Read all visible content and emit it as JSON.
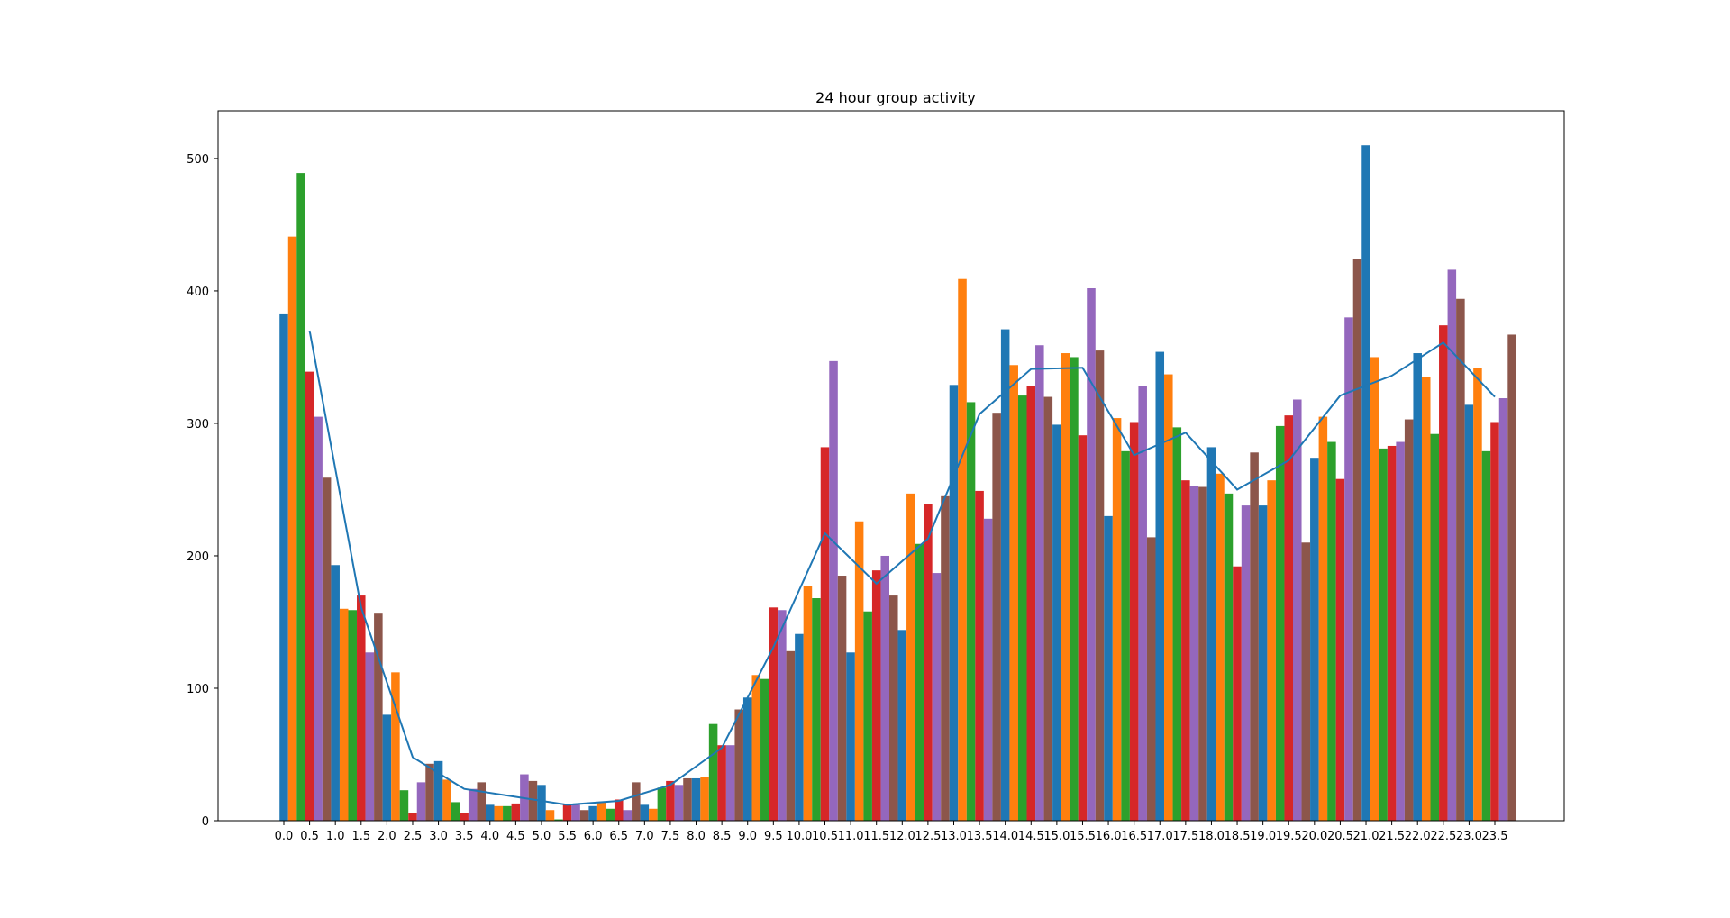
{
  "chart_data": {
    "type": "bar",
    "title": "24 hour group activity",
    "xlabel": "",
    "ylabel": "",
    "ylim": [
      0,
      536
    ],
    "y_ticks": [
      "0",
      "100",
      "200",
      "300",
      "400",
      "500"
    ],
    "x_ticks": [
      "0.0",
      "0.5",
      "1.0",
      "1.5",
      "2.0",
      "2.5",
      "3.0",
      "3.5",
      "4.0",
      "4.5",
      "5.0",
      "5.5",
      "6.0",
      "6.5",
      "7.0",
      "7.5",
      "8.0",
      "8.5",
      "9.0",
      "9.5",
      "10.0",
      "10.5",
      "11.0",
      "11.5",
      "12.0",
      "12.5",
      "13.0",
      "13.5",
      "14.0",
      "14.5",
      "15.0",
      "15.5",
      "16.0",
      "16.5",
      "17.0",
      "17.5",
      "18.0",
      "18.5",
      "19.0",
      "19.5",
      "20.0",
      "20.5",
      "21.0",
      "21.5",
      "22.0",
      "22.5",
      "23.0",
      "23.5"
    ],
    "grid": false,
    "legend": "none",
    "bar_colors": [
      "#1f77b4",
      "#ff7f0e",
      "#2ca02c",
      "#d62728",
      "#9467bd",
      "#8c564b"
    ],
    "line_color": "#1f77b4",
    "bars": [
      383,
      441,
      489,
      339,
      305,
      259,
      193,
      160,
      159,
      170,
      127,
      157,
      80,
      112,
      23,
      6,
      29,
      43,
      45,
      31,
      14,
      6,
      24,
      29,
      12,
      11,
      11,
      13,
      35,
      30,
      27,
      8,
      1,
      12,
      12,
      8,
      11,
      14,
      9,
      16,
      8,
      29,
      12,
      9,
      25,
      30,
      27,
      32,
      32,
      33,
      73,
      57,
      57,
      84,
      93,
      110,
      107,
      161,
      159,
      128,
      141,
      177,
      168,
      282,
      347,
      185,
      127,
      226,
      158,
      189,
      200,
      170,
      144,
      247,
      209,
      239,
      187,
      245,
      329,
      409,
      316,
      249,
      228,
      308,
      371,
      344,
      321,
      328,
      359,
      320,
      299,
      353,
      350,
      291,
      402,
      355,
      230,
      304,
      279,
      301,
      328,
      214,
      354,
      337,
      297,
      257,
      253,
      252,
      282,
      262,
      247,
      192,
      238,
      278,
      238,
      257,
      298,
      306,
      318,
      210,
      274,
      305,
      286,
      258,
      380,
      424,
      510,
      350,
      281,
      283,
      286,
      303,
      353,
      335,
      292,
      374,
      416,
      394,
      314,
      342,
      279,
      301,
      319,
      367
    ],
    "average_line": {
      "x": [
        0.5,
        1.5,
        2.5,
        3.5,
        4.5,
        5.5,
        6.5,
        7.5,
        8.5,
        9.5,
        10.5,
        11.5,
        12.5,
        13.5,
        14.5,
        15.5,
        16.5,
        17.5,
        18.5,
        19.5,
        20.5,
        21.5,
        22.5,
        23.5
      ],
      "y": [
        370,
        161,
        48,
        24,
        18,
        12,
        15,
        27,
        55,
        131,
        217,
        179,
        213,
        307,
        341,
        342,
        276,
        293,
        250,
        272,
        321,
        336,
        361,
        320
      ]
    }
  }
}
